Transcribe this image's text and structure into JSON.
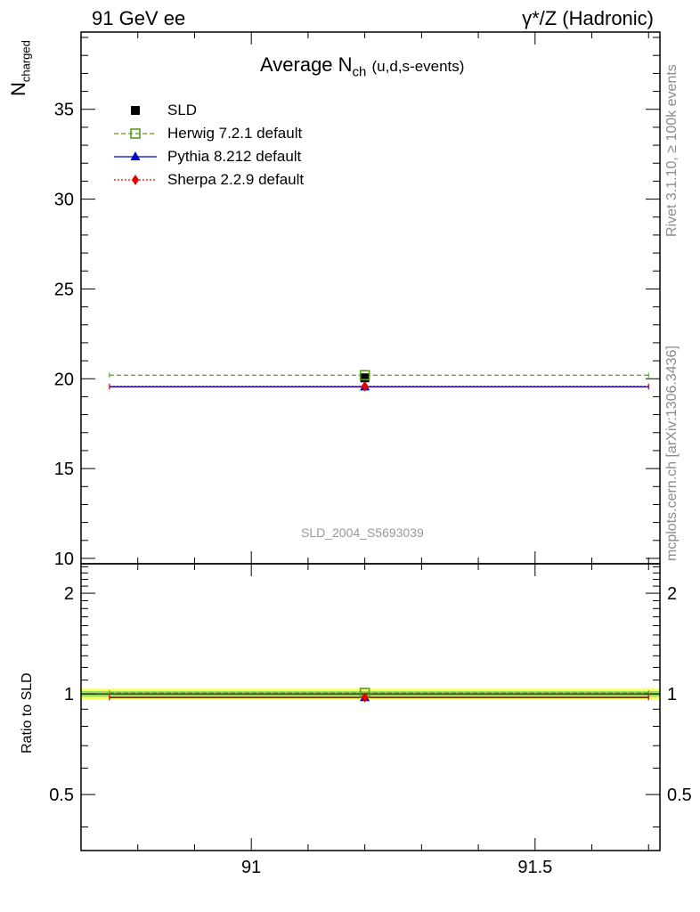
{
  "header": {
    "left": "91 GeV ee",
    "right": "γ*/Z (Hadronic)"
  },
  "side_text": {
    "rivet": "Rivet 3.1.10, ≥ 100k events",
    "mcplots": "mcplots.cern.ch [arXiv:1306.3436]"
  },
  "analysis_id": "SLD_2004_S5693039",
  "colors": {
    "data": "#000000",
    "herwig": "#5a9a1e",
    "pythia": "#0000cc",
    "sherpa": "#e00000",
    "band_outer": "#ffff66",
    "band_inner": "#99dd66",
    "side_text": "#8c8c8c"
  },
  "chart_data": {
    "type": "scatter",
    "title": "Average N",
    "title_sub": "ch",
    "title_suffix": "(u,d,s-events)",
    "ylabel": "N",
    "ylabel_sub": "charged",
    "ratio_ylabel": "Ratio to SLD",
    "xlim": [
      90.7,
      91.72
    ],
    "ylim": [
      9.7,
      39.3
    ],
    "ratio_ylim": [
      0.34,
      2.45
    ],
    "x_ticks": [
      91,
      91.5
    ],
    "x_tick_labels": [
      "91",
      "91.5"
    ],
    "y_ticks": [
      10,
      15,
      20,
      25,
      30,
      35
    ],
    "y_tick_labels": [
      "10",
      "15",
      "20",
      "25",
      "30",
      "35"
    ],
    "ratio_ticks": [
      0.5,
      1,
      2
    ],
    "ratio_tick_labels": [
      "0.5",
      "1",
      "2"
    ],
    "data_point": {
      "name": "SLD",
      "x": 91.2,
      "y": 20.05,
      "yerr": 0.2
    },
    "series": [
      {
        "name": "Herwig 7.2.1 default",
        "key": "herwig",
        "y": 20.2,
        "ratio": 1.007,
        "style": "dashed",
        "marker": "open-square"
      },
      {
        "name": "Pythia 8.212 default",
        "key": "pythia",
        "y": 19.55,
        "ratio": 0.975,
        "style": "solid",
        "marker": "triangle"
      },
      {
        "name": "Sherpa 2.2.9 default",
        "key": "sherpa",
        "y": 19.58,
        "ratio": 0.977,
        "style": "dotted",
        "marker": "diamond"
      }
    ],
    "series_x_range": [
      90.75,
      91.7
    ],
    "ratio_band": {
      "outer": [
        0.96,
        1.04
      ],
      "inner": [
        0.98,
        1.02
      ]
    },
    "legend": [
      "SLD",
      "Herwig 7.2.1 default",
      "Pythia 8.212 default",
      "Sherpa 2.2.9 default"
    ]
  }
}
